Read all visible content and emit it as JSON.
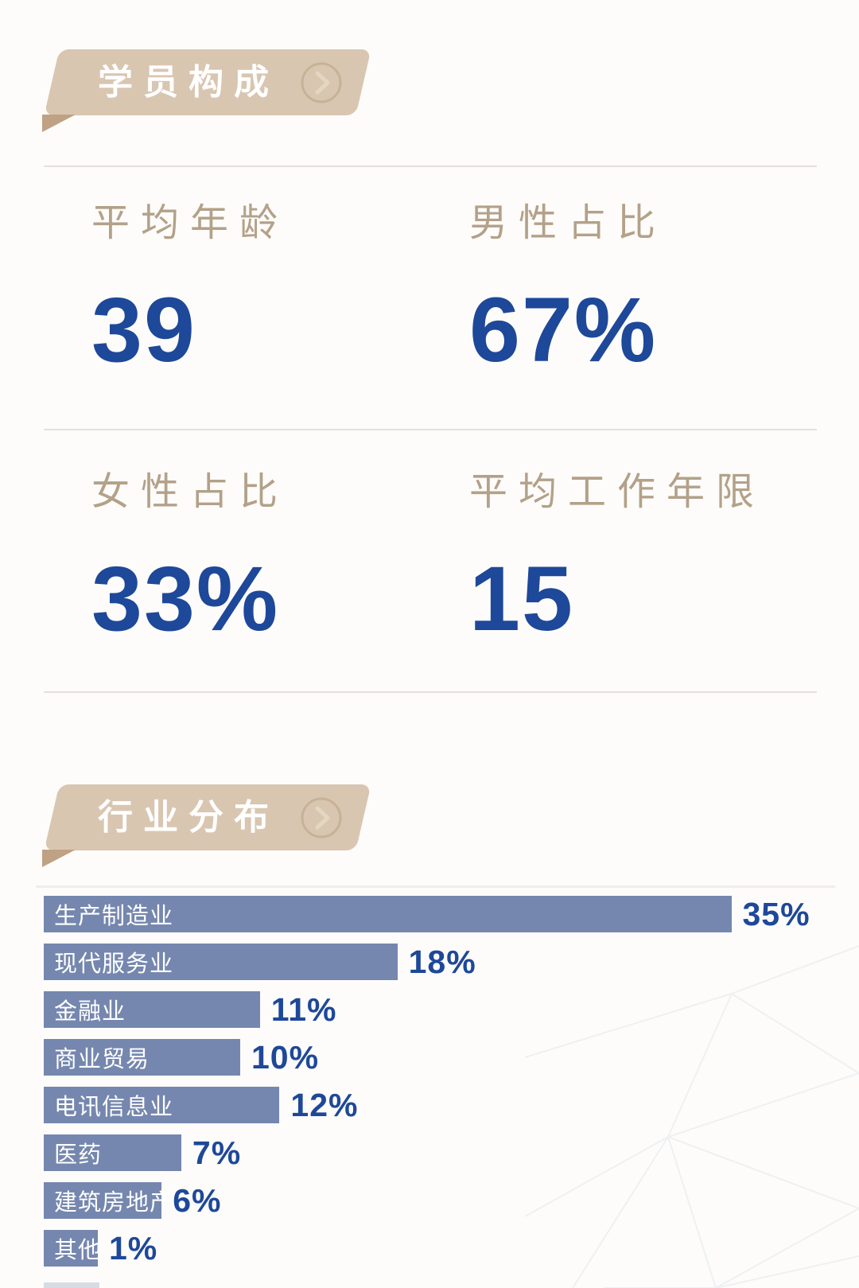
{
  "sections": {
    "composition": {
      "title": "学员构成"
    },
    "industry": {
      "title": "行业分布"
    }
  },
  "stats": [
    {
      "label": "平均年龄",
      "value": "39"
    },
    {
      "label": "男性占比",
      "value": "67%"
    },
    {
      "label": "女性占比",
      "value": "33%"
    },
    {
      "label": "平均工作年限",
      "value": "15"
    }
  ],
  "chart_data": {
    "type": "bar",
    "orientation": "horizontal",
    "title": "行业分布",
    "categories": [
      "生产制造业",
      "现代服务业",
      "金融业",
      "商业贸易",
      "电讯信息业",
      "医药",
      "建筑房地产",
      "其他"
    ],
    "values": [
      35,
      18,
      11,
      10,
      12,
      7,
      6,
      1
    ],
    "value_labels": [
      "35%",
      "18%",
      "11%",
      "10%",
      "12%",
      "7%",
      "6%",
      "1%"
    ],
    "unit": "%",
    "xlim": [
      0,
      35
    ],
    "grid": false,
    "legend": false,
    "bar_color": "#7587ae",
    "value_label_color": "#1e4899",
    "category_label_color": "#ffffff"
  },
  "colors": {
    "page_bg": "#fdfcfa",
    "banner_bg": "#d9c6b1",
    "banner_fold": "#bfa183",
    "banner_text": "#ffffff",
    "stat_label": "#b3a189",
    "stat_value": "#1e4899",
    "divider": "#e4e1da"
  },
  "icons": {
    "banner_arrow": "chevron-right-in-circle"
  }
}
